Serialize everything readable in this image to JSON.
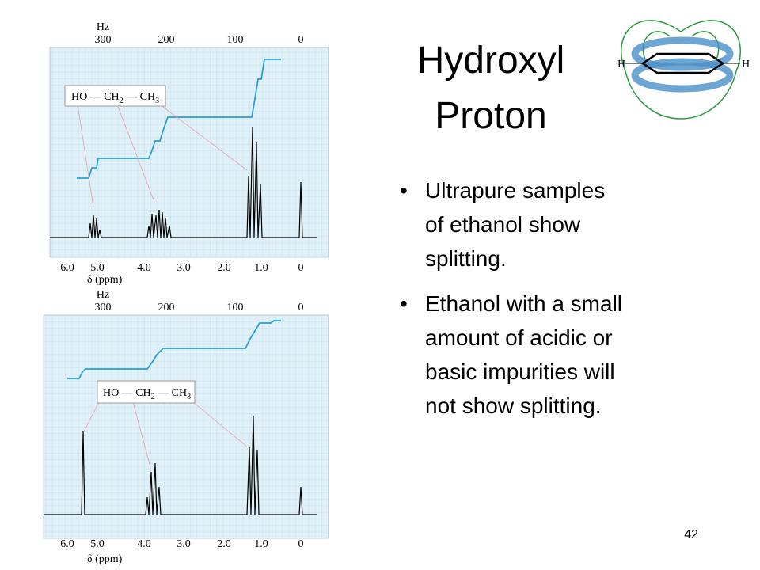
{
  "slide": {
    "title": [
      "Hydroxyl",
      "Proton"
    ],
    "bullets": [
      [
        "Ultrapure samples",
        "of ethanol show",
        "splitting."
      ],
      [
        "Ethanol with a small",
        "amount of acidic or",
        "basic impurities will",
        "not show splitting."
      ]
    ],
    "page_number": "42",
    "ring_diagram": {
      "labels": [
        "H",
        "H"
      ]
    },
    "spectra": [
      {
        "hz_label": "Hz",
        "hz_ticks": [
          "300",
          "200",
          "100",
          "0"
        ],
        "ppm_ticks": [
          "6.0",
          "5.0",
          "4.0",
          "3.0",
          "2.0",
          "1.0",
          "0"
        ],
        "ppm_label": "δ (ppm)",
        "formula": [
          "HO — CH",
          "2",
          " — CH",
          "3"
        ]
      },
      {
        "hz_label": "Hz",
        "hz_ticks": [
          "300",
          "200",
          "100",
          "0"
        ],
        "ppm_ticks": [
          "6.0",
          "5.0",
          "4.0",
          "3.0",
          "2.0",
          "1.0",
          "0"
        ],
        "ppm_label": "δ (ppm)",
        "formula": [
          "HO — CH",
          "2",
          " — CH",
          "3"
        ]
      }
    ]
  }
}
